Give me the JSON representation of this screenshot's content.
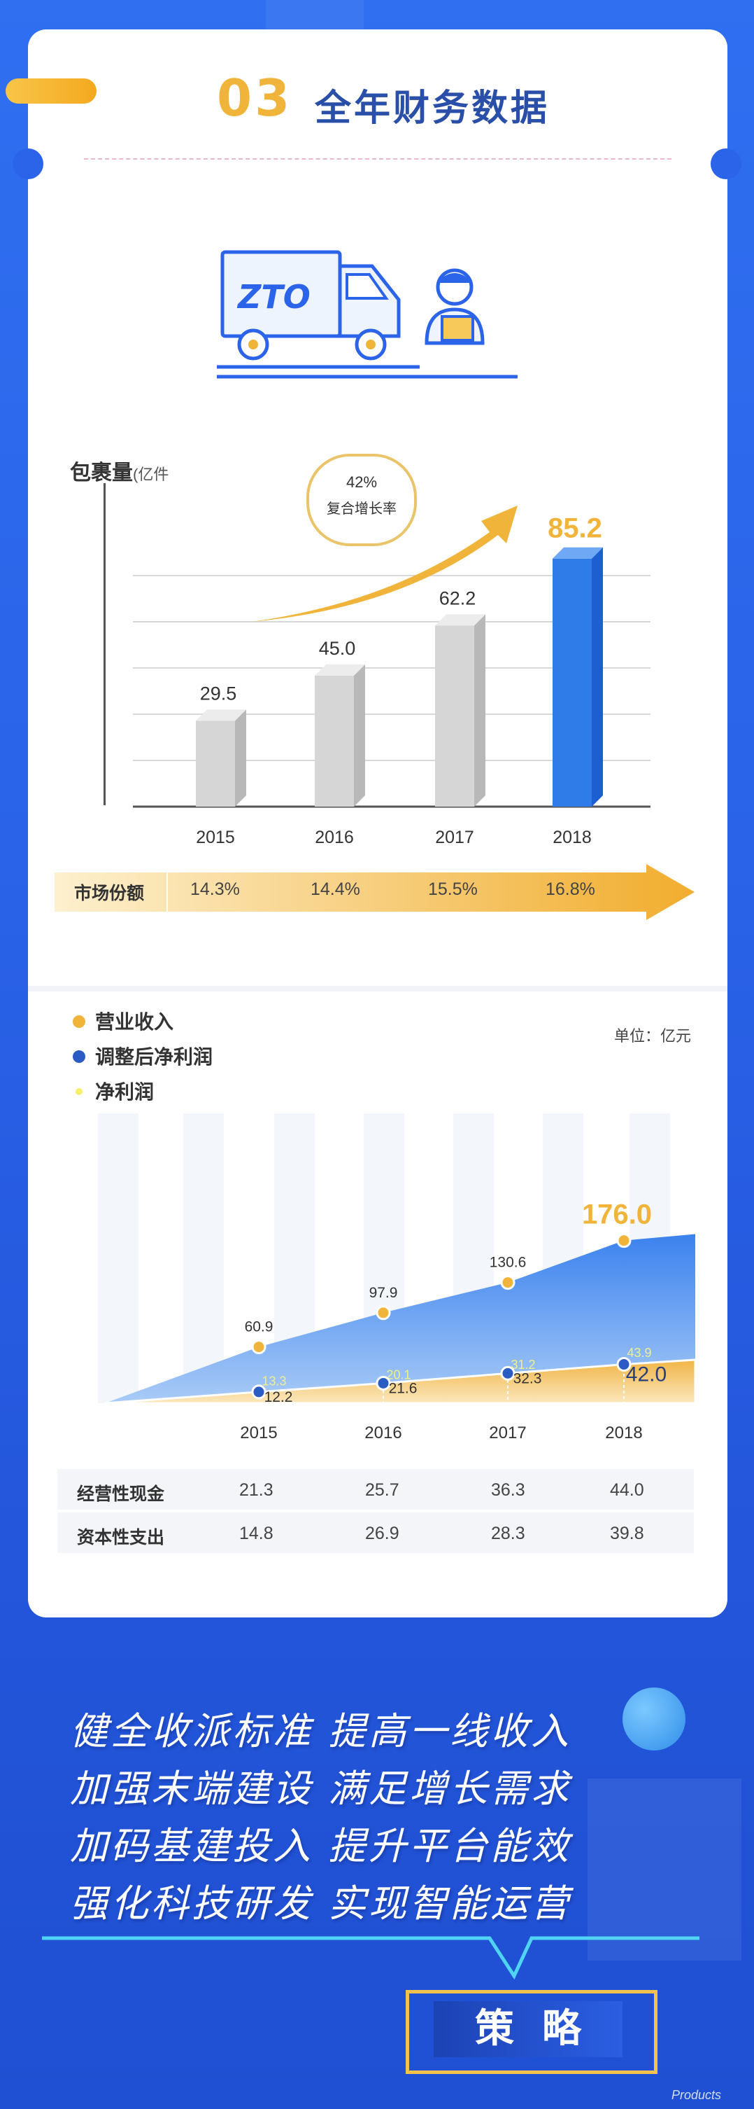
{
  "section": {
    "number": "03",
    "title": "全年财务数据"
  },
  "colors": {
    "accent_gold": "#f0b43a",
    "brand_blue": "#2b64e8",
    "bar_gray": "#d0d0d0",
    "bar_blue": "#2f7be8",
    "revenue_area": "#5b9df0",
    "profit_area": "#f5c462"
  },
  "truck_icon": {
    "brand_text": "ZTO"
  },
  "parcel_chart": {
    "title": "包裹量",
    "unit": "(亿件",
    "cagr_value": "42%",
    "cagr_label": "复合增长率",
    "share_label": "市场份额"
  },
  "finance_chart": {
    "legend": [
      "营业收入",
      "调整后净利润",
      "净利润"
    ],
    "unit": "单位：亿元"
  },
  "chart_data": [
    {
      "type": "bar",
      "title": "包裹量",
      "ylabel": "(亿件",
      "categories": [
        "2015",
        "2016",
        "2017",
        "2018"
      ],
      "values": [
        29.5,
        45.0,
        62.2,
        85.2
      ],
      "value_labels": [
        "29.5",
        "45.0",
        "62.2",
        "85.2"
      ],
      "market_share": [
        "14.3%",
        "14.4%",
        "15.5%",
        "16.8%"
      ],
      "annotation": {
        "value": "42%",
        "text": "复合增长率"
      },
      "ylim": [
        0,
        100
      ],
      "grid": true
    },
    {
      "type": "area",
      "categories": [
        "2015",
        "2016",
        "2017",
        "2018"
      ],
      "series": [
        {
          "name": "营业收入",
          "values": [
            60.9,
            97.9,
            130.6,
            176.0
          ],
          "labels": [
            "60.9",
            "97.9",
            "130.6",
            "176.0"
          ],
          "color": "#f0b43a"
        },
        {
          "name": "调整后净利润",
          "values": [
            12.2,
            21.6,
            32.3,
            42.0
          ],
          "labels": [
            "12.2",
            "21.6",
            "32.3",
            "42.0"
          ],
          "color": "#2b5cc4"
        },
        {
          "name": "净利润",
          "values": [
            13.3,
            20.1,
            31.2,
            43.9
          ],
          "labels": [
            "13.3",
            "20.1",
            "31.2",
            "43.9"
          ],
          "color": "#f7f06a"
        }
      ],
      "ylim": [
        0,
        200
      ],
      "legend_position": "top-left",
      "table": [
        {
          "label": "经营性现金",
          "values": [
            "21.3",
            "25.7",
            "36.3",
            "44.0"
          ]
        },
        {
          "label": "资本性支出",
          "values": [
            "14.8",
            "26.9",
            "28.3",
            "39.8"
          ]
        }
      ]
    }
  ],
  "slogans": [
    "健全收派标准  提高一线收入",
    "加强末端建设  满足增长需求",
    "加码基建投入  提升平台能效",
    "强化科技研发  实现智能运营"
  ],
  "strategy_label": "策略",
  "watermark": "Products"
}
